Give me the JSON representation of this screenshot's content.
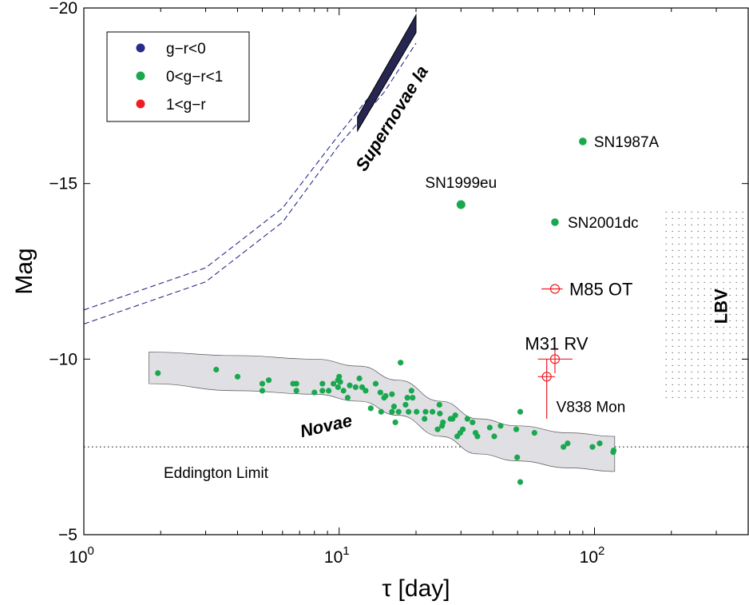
{
  "chart_data": {
    "type": "scatter",
    "xscale": "log",
    "yaxis_inverted": true,
    "xlim": [
      1,
      400
    ],
    "ylim": [
      -20,
      -5
    ],
    "xlabel": "τ [day]",
    "ylabel": "Mag",
    "xtick_labels": [
      {
        "base": "10",
        "exp": "0",
        "value": 1
      },
      {
        "base": "10",
        "exp": "1",
        "value": 10
      },
      {
        "base": "10",
        "exp": "2",
        "value": 100
      }
    ],
    "yticks": [
      -20,
      -15,
      -10,
      -5
    ],
    "ytick_labels": [
      "−20",
      "−15",
      "−10",
      "−5"
    ],
    "legend": {
      "placement": "top-left",
      "entries": [
        {
          "label": "g−r<0",
          "color": "#2a2a8c"
        },
        {
          "label": "0<g−r<1",
          "color": "#1aa84f"
        },
        {
          "label": "1<g−r",
          "color": "#ee1c25"
        }
      ]
    },
    "eddington_limit": {
      "label": "Eddington Limit",
      "mag": -7.5
    },
    "regions": {
      "supernovae": {
        "label": "Supernovae Ia",
        "color": "#262650",
        "band_x": [
          11.8,
          20
        ],
        "band_upper": [
          -16.9,
          -19.8
        ],
        "band_lower": [
          -16.5,
          -19.3
        ],
        "curve_upper": [
          [
            1,
            -11.4
          ],
          [
            3,
            -12.6
          ],
          [
            6,
            -14.3
          ],
          [
            10,
            -16.4
          ],
          [
            15,
            -18.0
          ],
          [
            20,
            -19.3
          ]
        ],
        "curve_lower": [
          [
            1,
            -11.0
          ],
          [
            3,
            -12.2
          ],
          [
            6,
            -13.9
          ],
          [
            10,
            -16.1
          ],
          [
            15,
            -17.6
          ],
          [
            20,
            -19.0
          ]
        ]
      },
      "novae": {
        "label": "Novae",
        "band_color": "#e0e0e4",
        "upper": [
          [
            1.8,
            -10.2
          ],
          [
            4,
            -10.1
          ],
          [
            8,
            -10.0
          ],
          [
            12,
            -9.8
          ],
          [
            17,
            -9.4
          ],
          [
            25,
            -8.8
          ],
          [
            35,
            -8.3
          ],
          [
            50,
            -8.1
          ],
          [
            80,
            -7.9
          ],
          [
            120,
            -7.8
          ]
        ],
        "lower": [
          [
            1.8,
            -9.3
          ],
          [
            4,
            -9.1
          ],
          [
            8,
            -9.0
          ],
          [
            12,
            -8.8
          ],
          [
            17,
            -8.4
          ],
          [
            25,
            -7.8
          ],
          [
            35,
            -7.3
          ],
          [
            50,
            -7.1
          ],
          [
            80,
            -6.9
          ],
          [
            120,
            -6.8
          ]
        ]
      },
      "lbv": {
        "label": "LBV",
        "x": [
          190,
          400
        ],
        "mag": [
          -14.2,
          -8.9
        ]
      }
    },
    "named_objects": [
      {
        "name": "SN1987A",
        "x": 90,
        "mag": -16.2,
        "class": "0<g−r<1",
        "size": "medium"
      },
      {
        "name": "SN1999eu",
        "x": 30,
        "mag": -14.4,
        "class": "0<g−r<1",
        "size": "large"
      },
      {
        "name": "SN2001dc",
        "x": 70,
        "mag": -13.9,
        "class": "0<g−r<1",
        "size": "medium"
      },
      {
        "name": "M85 OT",
        "x": 70,
        "mag": -12.0,
        "class": "1<g−r",
        "err_x": [
          62,
          75
        ],
        "err_y": [
          0,
          0
        ]
      },
      {
        "name": "M31 RV",
        "x": 70,
        "mag": -10.0,
        "class": "1<g−r",
        "err_x": [
          60,
          82
        ],
        "err_y": [
          -0.3,
          0.4
        ]
      },
      {
        "name": "V838 Mon",
        "x": 65,
        "mag": -9.5,
        "class": "1<g−r",
        "err_x": [
          60,
          70
        ],
        "err_y": [
          -0.5,
          1.2
        ]
      }
    ],
    "novae_points": [
      [
        1.95,
        -9.6
      ],
      [
        3.3,
        -9.7
      ],
      [
        4.0,
        -9.5
      ],
      [
        5.0,
        -9.3
      ],
      [
        5.0,
        -9.1
      ],
      [
        5.3,
        -9.4
      ],
      [
        6.6,
        -9.3
      ],
      [
        6.8,
        -9.1
      ],
      [
        6.8,
        -9.3
      ],
      [
        8.0,
        -9.05
      ],
      [
        8.6,
        -9.3
      ],
      [
        8.6,
        -9.1
      ],
      [
        9.1,
        -9.1
      ],
      [
        9.5,
        -9.3
      ],
      [
        9.9,
        -9.2
      ],
      [
        9.9,
        -9.4
      ],
      [
        10.0,
        -9.5
      ],
      [
        10.1,
        -9.35
      ],
      [
        10.4,
        -9.1
      ],
      [
        10.8,
        -8.9
      ],
      [
        11.0,
        -9.25
      ],
      [
        11.6,
        -9.2
      ],
      [
        12.0,
        -9.45
      ],
      [
        12.3,
        -9.2
      ],
      [
        12.7,
        -9.1
      ],
      [
        13.3,
        -8.6
      ],
      [
        13.9,
        -9.3
      ],
      [
        14.5,
        -9.05
      ],
      [
        14.6,
        -8.5
      ],
      [
        15.0,
        -8.9
      ],
      [
        15.2,
        -8.95
      ],
      [
        16.1,
        -9.0
      ],
      [
        16.1,
        -8.5
      ],
      [
        16.4,
        -8.65
      ],
      [
        16.6,
        -8.2
      ],
      [
        17.1,
        -8.5
      ],
      [
        17.4,
        -9.9
      ],
      [
        18.2,
        -8.7
      ],
      [
        18.5,
        -8.9
      ],
      [
        18.7,
        -8.5
      ],
      [
        19.2,
        -9.1
      ],
      [
        19.4,
        -8.9
      ],
      [
        20.1,
        -8.5
      ],
      [
        21.6,
        -8.3
      ],
      [
        21.8,
        -8.5
      ],
      [
        23.2,
        -8.5
      ],
      [
        24.3,
        -8.0
      ],
      [
        24.7,
        -8.7
      ],
      [
        24.8,
        -8.45
      ],
      [
        25.3,
        -8.1
      ],
      [
        25.5,
        -8.2
      ],
      [
        27.3,
        -8.3
      ],
      [
        27.8,
        -8.3
      ],
      [
        28.5,
        -8.4
      ],
      [
        29.0,
        -7.8
      ],
      [
        29.8,
        -7.9
      ],
      [
        30.5,
        -8.0
      ],
      [
        31.8,
        -8.3
      ],
      [
        33.3,
        -8.2
      ],
      [
        34.2,
        -7.9
      ],
      [
        34.8,
        -7.8
      ],
      [
        38.9,
        -8.05
      ],
      [
        40.5,
        -7.8
      ],
      [
        42.9,
        -8.1
      ],
      [
        49.4,
        -8.0
      ],
      [
        49.8,
        -7.2
      ],
      [
        51.2,
        -6.5
      ],
      [
        51.2,
        -8.5
      ],
      [
        58.2,
        -7.9
      ],
      [
        75.6,
        -7.5
      ],
      [
        78.5,
        -7.6
      ],
      [
        98.2,
        -7.5
      ],
      [
        104.8,
        -7.6
      ],
      [
        118.4,
        -7.35
      ],
      [
        118.9,
        -7.4
      ]
    ]
  }
}
